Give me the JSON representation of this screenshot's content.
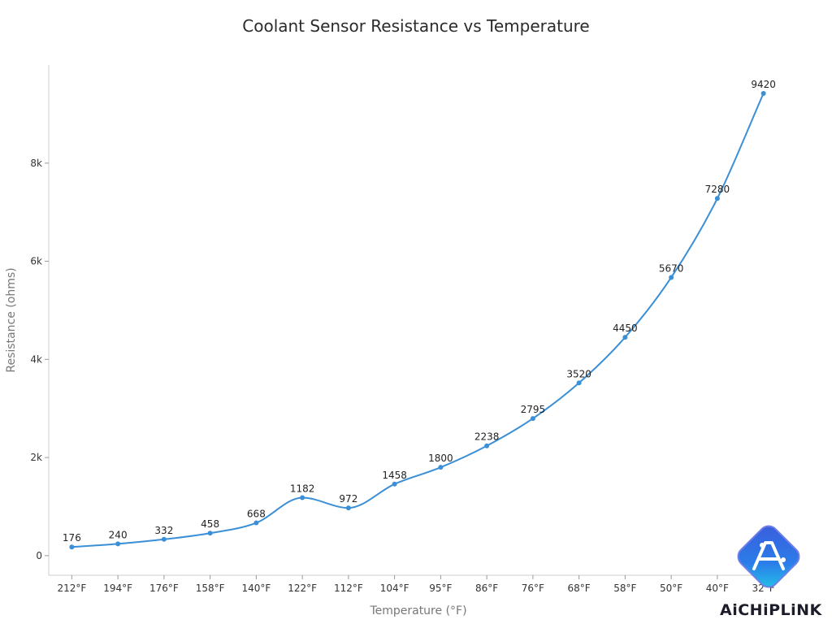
{
  "chart_data": {
    "type": "line",
    "title": "Coolant Sensor Resistance vs Temperature",
    "xlabel": "Temperature (°F)",
    "ylabel": "Resistance (ohms)",
    "categories": [
      "212°F",
      "194°F",
      "176°F",
      "158°F",
      "140°F",
      "122°F",
      "112°F",
      "104°F",
      "95°F",
      "86°F",
      "76°F",
      "68°F",
      "58°F",
      "50°F",
      "40°F",
      "32°F"
    ],
    "series": [
      {
        "values": [
          176,
          240,
          332,
          458,
          668,
          1182,
          972,
          1458,
          1800,
          2238,
          2795,
          3520,
          4450,
          5670,
          7280,
          9420
        ]
      }
    ],
    "data_labels": [
      "176",
      "240",
      "332",
      "458",
      "668",
      "1182",
      "972",
      "1458",
      "1800",
      "2238",
      "2795",
      "3520",
      "4450",
      "5670",
      "7280",
      "9420"
    ],
    "ylim": [
      -400,
      10000
    ],
    "yticks": [
      0,
      2000,
      4000,
      6000,
      8000
    ],
    "ytick_labels": [
      "0",
      "2k",
      "4k",
      "6k",
      "8k"
    ],
    "grid": false,
    "line_color": "#3a8fd6",
    "smooth": true
  },
  "logo": {
    "text": "AiCHiPLiNK"
  }
}
